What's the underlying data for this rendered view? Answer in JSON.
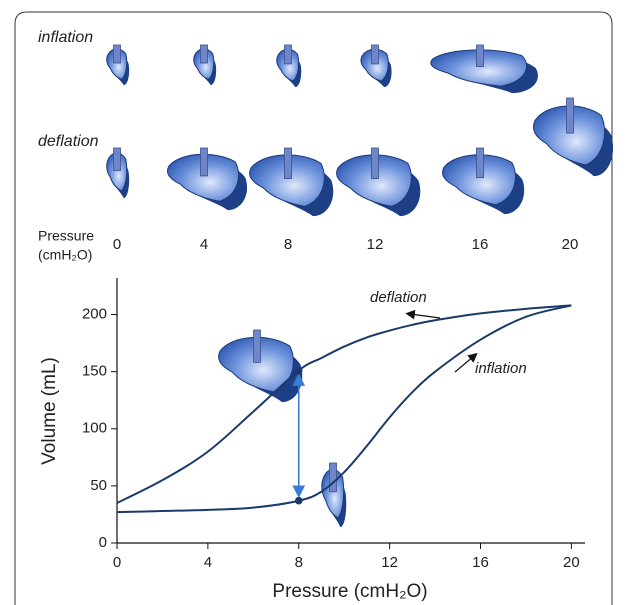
{
  "illustration": {
    "rows": [
      "inflation",
      "deflation"
    ],
    "pressure_label": [
      "Pressure",
      "(cmH₂O)"
    ],
    "pressures": [
      0,
      4,
      8,
      12,
      16,
      20
    ]
  },
  "chart_data": {
    "type": "line",
    "x_label": "Pressure (cmH₂O)",
    "y_label": "Volume (mL)",
    "x": [
      0,
      2,
      4,
      6,
      8,
      9,
      10,
      11,
      12,
      13,
      14,
      16,
      18,
      20
    ],
    "series": [
      {
        "name": "deflation",
        "color": "#1b3a6b",
        "values": [
          35,
          55,
          80,
          115,
          151,
          162,
          172,
          180,
          186,
          191,
          195,
          201,
          205,
          208
        ]
      },
      {
        "name": "inflation",
        "color": "#1b3a6b",
        "values": [
          27,
          28,
          29,
          31,
          37,
          45,
          62,
          85,
          110,
          132,
          150,
          178,
          198,
          208
        ]
      }
    ],
    "markers": {
      "x": [
        8,
        8
      ],
      "values": [
        151,
        37
      ],
      "color": "#3a7bd5"
    },
    "xlim": [
      0,
      20.6
    ],
    "xticks": [
      0,
      4,
      8,
      12,
      16,
      20
    ],
    "ylim": [
      0,
      232
    ],
    "yticks": [
      0,
      50,
      100,
      150,
      200
    ]
  }
}
